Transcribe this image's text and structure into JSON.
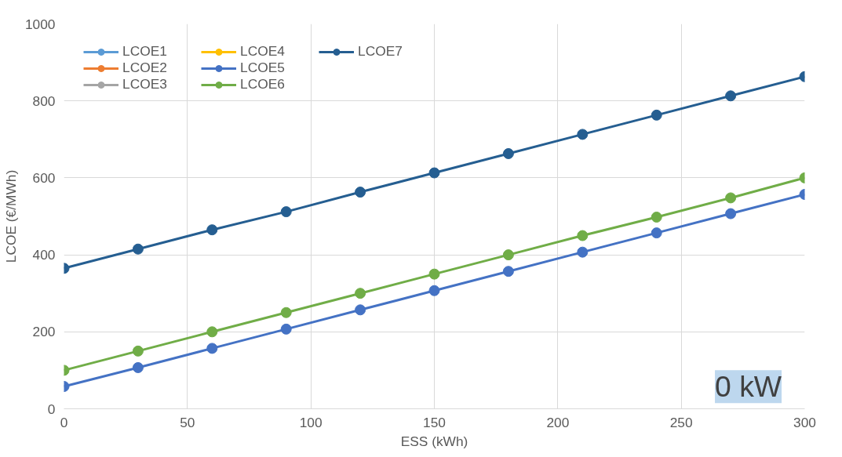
{
  "chart_data": {
    "type": "line",
    "xlabel": "ESS (kWh)",
    "ylabel": "LCOE (€/MWh)",
    "x": [
      0,
      30,
      60,
      90,
      120,
      150,
      180,
      210,
      240,
      270,
      300
    ],
    "xlim": [
      0,
      300
    ],
    "xticks": [
      0,
      50,
      100,
      150,
      200,
      250,
      300
    ],
    "ylim": [
      0,
      1000
    ],
    "yticks": [
      0,
      200,
      400,
      600,
      800,
      1000
    ],
    "grid": true,
    "legend": "top left",
    "marker": "circle",
    "line_style": "solid",
    "annotations": [
      "0 kW"
    ],
    "series": [
      {
        "name": "LCOE1",
        "color": "#5b9bd5",
        "values": [
          null,
          null,
          null,
          null,
          null,
          null,
          null,
          null,
          null,
          null,
          null
        ]
      },
      {
        "name": "LCOE2",
        "color": "#ed7d31",
        "values": [
          null,
          null,
          null,
          null,
          null,
          null,
          null,
          null,
          null,
          null,
          null
        ]
      },
      {
        "name": "LCOE3",
        "color": "#a5a5a5",
        "values": [
          null,
          null,
          null,
          null,
          null,
          null,
          null,
          null,
          null,
          null,
          null
        ]
      },
      {
        "name": "LCOE4",
        "color": "#ffc000",
        "values": [
          null,
          null,
          null,
          null,
          null,
          null,
          null,
          null,
          null,
          null,
          null
        ]
      },
      {
        "name": "LCOE5",
        "color": "#4472c4",
        "values": [
          58,
          107,
          157,
          207,
          257,
          307,
          357,
          407,
          457,
          507,
          557
        ]
      },
      {
        "name": "LCOE6",
        "color": "#70ad47",
        "values": [
          100,
          150,
          200,
          250,
          300,
          350,
          400,
          450,
          498,
          548,
          600
        ]
      },
      {
        "name": "LCOE7",
        "color": "#255e91",
        "values": [
          365,
          415,
          465,
          512,
          563,
          613,
          663,
          713,
          763,
          813,
          863
        ]
      }
    ]
  }
}
